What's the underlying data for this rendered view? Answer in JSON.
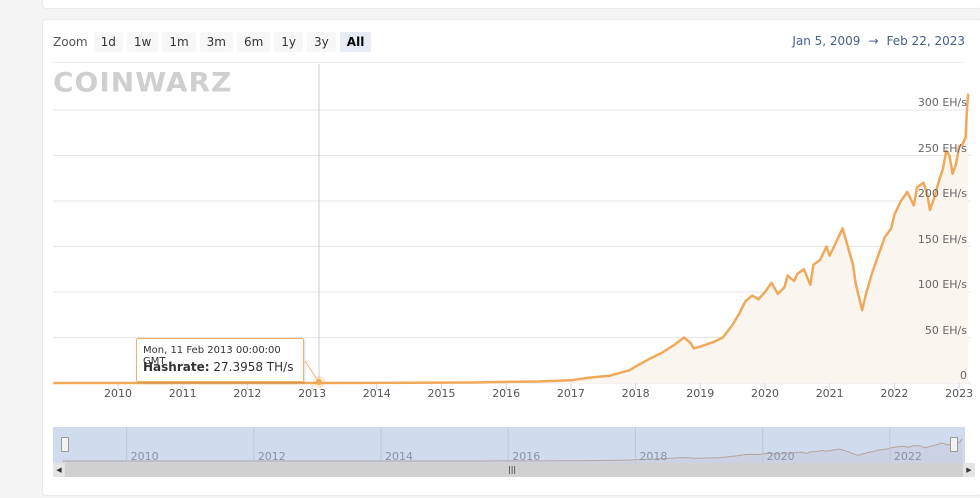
{
  "toolbar": {
    "zoom_label": "Zoom",
    "buttons": [
      "1d",
      "1w",
      "1m",
      "3m",
      "6m",
      "1y",
      "3y",
      "All"
    ],
    "active": "All"
  },
  "range": {
    "from": "Jan 5, 2009",
    "arrow": "→",
    "to": "Feb 22, 2023"
  },
  "watermark": "COINWARZ",
  "tooltip": {
    "date": "Mon, 11 Feb 2013 00:00:00 GMT",
    "label": "Hashrate",
    "value": "27.3958 TH/s"
  },
  "navigator": {
    "labels": [
      "2010",
      "2012",
      "2014",
      "2016",
      "2018",
      "2020",
      "2022"
    ]
  },
  "colors": {
    "line": "#f0a95a",
    "area": "#fbf5f0",
    "grid": "#e6e6e6",
    "navigator": "#d1dbee"
  },
  "chart_data": {
    "type": "area",
    "title": "",
    "xlabel": "",
    "ylabel": "Hashrate",
    "y_unit": "EH/s",
    "ylim": [
      0,
      320
    ],
    "yticks": [
      "0",
      "50 EH/s",
      "100 EH/s",
      "150 EH/s",
      "200 EH/s",
      "250 EH/s",
      "300 EH/s"
    ],
    "ytick_values": [
      0,
      50,
      100,
      150,
      200,
      250,
      300
    ],
    "xticks": [
      "2010",
      "2011",
      "2012",
      "2013",
      "2014",
      "2015",
      "2016",
      "2017",
      "2018",
      "2019",
      "2020",
      "2021",
      "2022",
      "2023"
    ],
    "grid": true,
    "legend": null,
    "series": [
      {
        "name": "Hashrate",
        "x": [
          2009.0,
          2010.0,
          2011.0,
          2012.0,
          2013.0,
          2014.0,
          2015.0,
          2015.5,
          2016.0,
          2016.5,
          2017.0,
          2017.3,
          2017.6,
          2017.9,
          2018.0,
          2018.2,
          2018.4,
          2018.6,
          2018.75,
          2018.85,
          2018.9,
          2019.0,
          2019.2,
          2019.35,
          2019.5,
          2019.6,
          2019.7,
          2019.8,
          2019.9,
          2020.0,
          2020.1,
          2020.2,
          2020.3,
          2020.35,
          2020.45,
          2020.5,
          2020.6,
          2020.7,
          2020.75,
          2020.85,
          2020.95,
          2021.0,
          2021.1,
          2021.2,
          2021.28,
          2021.32,
          2021.36,
          2021.4,
          2021.5,
          2021.55,
          2021.65,
          2021.75,
          2021.85,
          2021.95,
          2022.0,
          2022.1,
          2022.2,
          2022.3,
          2022.35,
          2022.45,
          2022.5,
          2022.55,
          2022.6,
          2022.7,
          2022.75,
          2022.8,
          2022.85,
          2022.9,
          2022.95,
          2023.0,
          2023.05,
          2023.1,
          2023.12,
          2023.14
        ],
        "values": [
          0,
          0,
          0.01,
          0.02,
          0.03,
          0.1,
          0.4,
          0.6,
          1.2,
          1.6,
          3,
          6,
          8,
          14,
          18,
          26,
          33,
          42,
          50,
          44,
          38,
          40,
          45,
          50,
          64,
          76,
          90,
          96,
          92,
          100,
          110,
          98,
          105,
          118,
          112,
          120,
          125,
          108,
          130,
          135,
          150,
          140,
          155,
          170,
          150,
          140,
          130,
          110,
          80,
          95,
          120,
          140,
          160,
          170,
          185,
          200,
          210,
          195,
          215,
          220,
          210,
          190,
          200,
          225,
          235,
          255,
          250,
          230,
          240,
          260,
          262,
          270,
          300,
          318
        ]
      }
    ],
    "tooltip_point": {
      "x": "2013-02-11",
      "value": "27.3958 TH/s"
    }
  }
}
